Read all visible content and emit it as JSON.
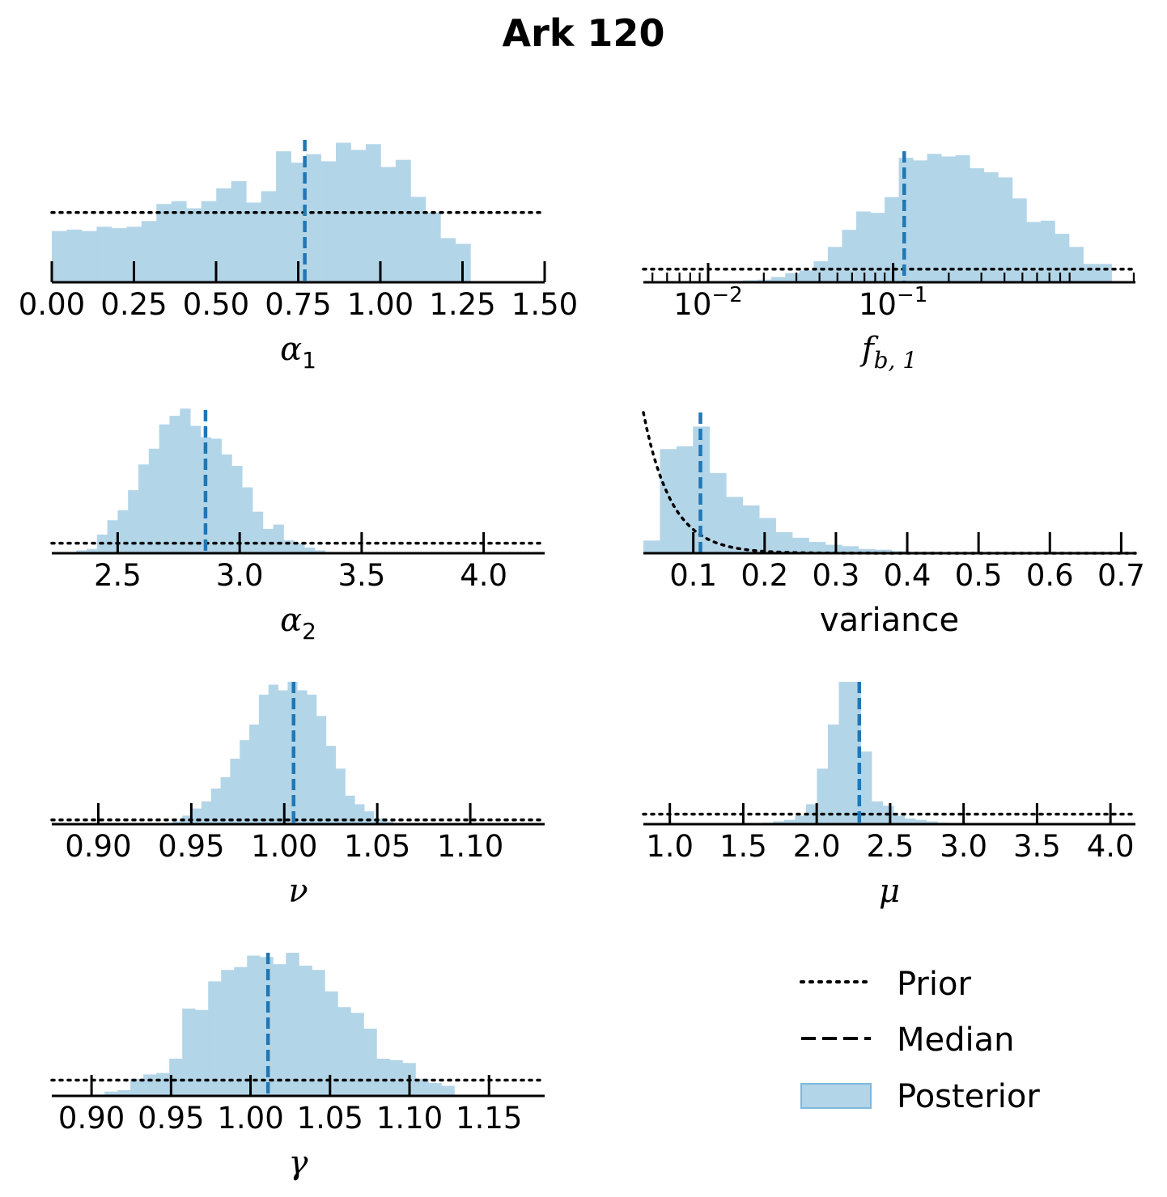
{
  "title": "Ark 120",
  "colors": {
    "posterior": "#b3d5e8",
    "median": "#1f77b4",
    "prior": "#000000",
    "axis": "#000000"
  },
  "legend": {
    "items": [
      {
        "label": "Prior",
        "style": "dotted"
      },
      {
        "label": "Median",
        "style": "dashed"
      },
      {
        "label": "Posterior",
        "style": "patch"
      }
    ]
  },
  "chart_data": [
    {
      "id": "alpha1",
      "type": "histogram",
      "scale": "linear",
      "xlabel": {
        "base": "α",
        "sub": "1"
      },
      "xlim": [
        0.0,
        1.5
      ],
      "ylim": [
        0,
        100
      ],
      "xticks": [
        0.0,
        0.25,
        0.5,
        0.75,
        1.0,
        1.25,
        1.5
      ],
      "xticklabels": [
        "0.00",
        "0.25",
        "0.50",
        "0.75",
        "1.00",
        "1.25",
        "1.50"
      ],
      "bin_start": 0.0,
      "bin_width": 0.0455,
      "counts": [
        36,
        37,
        36,
        39,
        38,
        39,
        43,
        55,
        57,
        52,
        57,
        66,
        71,
        56,
        64,
        92,
        84,
        90,
        85,
        98,
        93,
        97,
        81,
        86,
        60,
        49,
        31,
        27
      ],
      "median": 0.77,
      "prior": {
        "kind": "flat",
        "y": 49
      }
    },
    {
      "id": "fb1",
      "type": "histogram",
      "scale": "log",
      "xlabel": {
        "base": "f",
        "sub": "b, 1"
      },
      "xlim_log10": [
        -2.35,
        0.31
      ],
      "ylim": [
        0,
        100
      ],
      "major_ticks_log10": [
        -2,
        -1
      ],
      "xticklabels": [
        {
          "base": "10",
          "exp": "−2"
        },
        {
          "base": "10",
          "exp": "−1"
        }
      ],
      "bin_start_log10": -2.35,
      "bin_width_log10": 0.0767,
      "counts": [
        0,
        0,
        0,
        0,
        0.5,
        1,
        1,
        1.5,
        2,
        4,
        7,
        9,
        16,
        27,
        40,
        54,
        53,
        65,
        95,
        93,
        98,
        96,
        97,
        87,
        84,
        80,
        64,
        46,
        47,
        37,
        27,
        14,
        14
      ],
      "median_log10": -0.94,
      "prior": {
        "kind": "flat",
        "y": 10
      }
    },
    {
      "id": "alpha2",
      "type": "histogram",
      "scale": "linear",
      "xlabel": {
        "base": "α",
        "sub": "2"
      },
      "xlim": [
        2.23,
        4.25
      ],
      "ylim": [
        0,
        100
      ],
      "xticks": [
        2.5,
        3.0,
        3.5,
        4.0
      ],
      "xticklabels": [
        "2.5",
        "3.0",
        "3.5",
        "4.0"
      ],
      "bin_start": 2.33,
      "bin_width": 0.0425,
      "counts": [
        2,
        3,
        13,
        23,
        30,
        44,
        62,
        73,
        90,
        96,
        101,
        89,
        81,
        80,
        69,
        61,
        46,
        29,
        17,
        20,
        9,
        7,
        4,
        2
      ],
      "median": 2.86,
      "prior": {
        "kind": "flat",
        "y": 7
      }
    },
    {
      "id": "variance",
      "type": "histogram",
      "scale": "linear",
      "xlabel": {
        "text": "variance"
      },
      "xlim": [
        0.03,
        0.72
      ],
      "ylim": [
        0,
        100
      ],
      "xticks": [
        0.1,
        0.2,
        0.3,
        0.4,
        0.5,
        0.6,
        0.7
      ],
      "xticklabels": [
        "0.1",
        "0.2",
        "0.3",
        "0.4",
        "0.5",
        "0.6",
        "0.7"
      ],
      "bin_start": 0.03,
      "bin_width": 0.0232,
      "counts": [
        9,
        74,
        76,
        90,
        57,
        40,
        34,
        25,
        15,
        11,
        8,
        6,
        5,
        3,
        2.5,
        1.5,
        1,
        1,
        0.5,
        0.5,
        0.5,
        0.5,
        0.3,
        0.3,
        0.3,
        0.2,
        0.2,
        0.1,
        0.1,
        0.1
      ],
      "median": 0.11,
      "prior": {
        "kind": "exponential",
        "x0": 0.03,
        "y0": 100,
        "rate": 25.5
      }
    },
    {
      "id": "nu",
      "type": "histogram",
      "scale": "linear",
      "xlabel": {
        "base": "ν"
      },
      "xlim": [
        0.875,
        1.14
      ],
      "ylim": [
        0,
        100
      ],
      "xticks": [
        0.9,
        0.95,
        1.0,
        1.05,
        1.1
      ],
      "xticklabels": [
        "0.90",
        "0.95",
        "1.00",
        "1.05",
        "1.10"
      ],
      "bin_start": 0.94,
      "bin_width": 0.00515,
      "counts": [
        2,
        6,
        11,
        16,
        25,
        33,
        46,
        59,
        70,
        91,
        98,
        94,
        100,
        94,
        91,
        76,
        55,
        39,
        20,
        14,
        9,
        4,
        2
      ],
      "median": 1.005,
      "prior": {
        "kind": "flat",
        "y": 3
      }
    },
    {
      "id": "mu",
      "type": "histogram",
      "scale": "linear",
      "xlabel": {
        "base": "μ"
      },
      "xlim": [
        0.82,
        4.17
      ],
      "ylim": [
        0,
        100
      ],
      "xticks": [
        1.0,
        1.5,
        2.0,
        2.5,
        3.0,
        3.5,
        4.0
      ],
      "xticklabels": [
        "1.0",
        "1.5",
        "2.0",
        "2.5",
        "3.0",
        "3.5",
        "4.0"
      ],
      "bin_start": 1.48,
      "bin_width": 0.0745,
      "counts": [
        0.3,
        0.5,
        1,
        2,
        3,
        6,
        14,
        39,
        70,
        100,
        100,
        51,
        16,
        13,
        6,
        4,
        3,
        2,
        1
      ],
      "median": 2.29,
      "prior": {
        "kind": "flat",
        "y": 7
      }
    },
    {
      "id": "gamma",
      "type": "histogram",
      "scale": "linear",
      "xlabel": {
        "base": "γ"
      },
      "xlim": [
        0.875,
        1.185
      ],
      "ylim": [
        0,
        100
      ],
      "xticks": [
        0.9,
        0.95,
        1.0,
        1.05,
        1.1,
        1.15
      ],
      "xticklabels": [
        "0.90",
        "0.95",
        "1.00",
        "1.05",
        "1.10",
        "1.15"
      ],
      "bin_start": 0.9,
      "bin_width": 0.00815,
      "counts": [
        1,
        3,
        4,
        12,
        15,
        16,
        26,
        61,
        60,
        80,
        88,
        90,
        98,
        97,
        92,
        100,
        91,
        88,
        73,
        62,
        58,
        47,
        26,
        25,
        23,
        12,
        9,
        7
      ],
      "median": 1.011,
      "prior": {
        "kind": "flat",
        "y": 11
      }
    }
  ]
}
